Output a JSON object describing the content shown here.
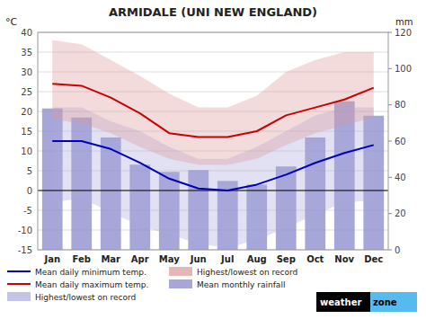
{
  "chart_data": {
    "type": "line",
    "title": "ARMIDALE (UNI NEW ENGLAND)",
    "ylabel": "°C",
    "y2label": "mm",
    "categories": [
      "Jan",
      "Feb",
      "Mar",
      "Apr",
      "May",
      "Jun",
      "Jul",
      "Aug",
      "Sep",
      "Oct",
      "Nov",
      "Dec"
    ],
    "series": [
      {
        "name": "Mean daily minimum temp.",
        "type": "line",
        "color": "#0000bb",
        "values": [
          12.5,
          12.5,
          10.5,
          7.0,
          3.0,
          0.5,
          0.0,
          1.5,
          4.0,
          7.0,
          9.5,
          11.5
        ]
      },
      {
        "name": "Mean daily maximum temp.",
        "type": "line",
        "color": "#cc0000",
        "values": [
          27.0,
          26.5,
          23.5,
          19.5,
          14.5,
          13.5,
          13.5,
          15.0,
          19.0,
          21.0,
          23.0,
          26.0
        ]
      },
      {
        "name": "Highest/lowest on record",
        "type": "range",
        "color": "#aaaadd",
        "low": [
          -3.0,
          -2.0,
          -5.5,
          -9.0,
          -11.0,
          -13.5,
          -14.5,
          -12.5,
          -9.5,
          -6.0,
          -3.0,
          -2.5
        ],
        "high": [
          21.0,
          21.0,
          17.5,
          15.0,
          11.0,
          8.0,
          8.0,
          11.0,
          15.0,
          19.0,
          21.0,
          21.0
        ]
      },
      {
        "name": "Highest/lowest on record",
        "type": "range",
        "color": "#dd9999",
        "low": [
          18.0,
          17.0,
          14.5,
          11.0,
          8.0,
          6.5,
          6.5,
          8.0,
          11.5,
          14.5,
          16.5,
          18.5
        ],
        "high": [
          38.0,
          37.0,
          33.0,
          29.0,
          24.5,
          21.0,
          21.0,
          24.0,
          30.0,
          33.0,
          35.0,
          35.0
        ]
      },
      {
        "name": "Mean monthly rainfall",
        "type": "bar",
        "axis": "y2",
        "color": "#8888cc",
        "values": [
          78,
          73,
          62,
          47,
          43,
          44,
          38,
          36,
          46,
          62,
          82,
          74
        ]
      }
    ],
    "ylim": [
      -15,
      40
    ],
    "yticks": [
      -15,
      -10,
      -5,
      0,
      5,
      10,
      15,
      20,
      25,
      30,
      35,
      40
    ],
    "y2lim": [
      0,
      120
    ],
    "y2ticks": [
      0,
      20,
      40,
      60,
      80,
      100,
      120
    ],
    "grid": true,
    "legend": "bottom",
    "annotations": [
      "weather",
      "zone"
    ]
  }
}
